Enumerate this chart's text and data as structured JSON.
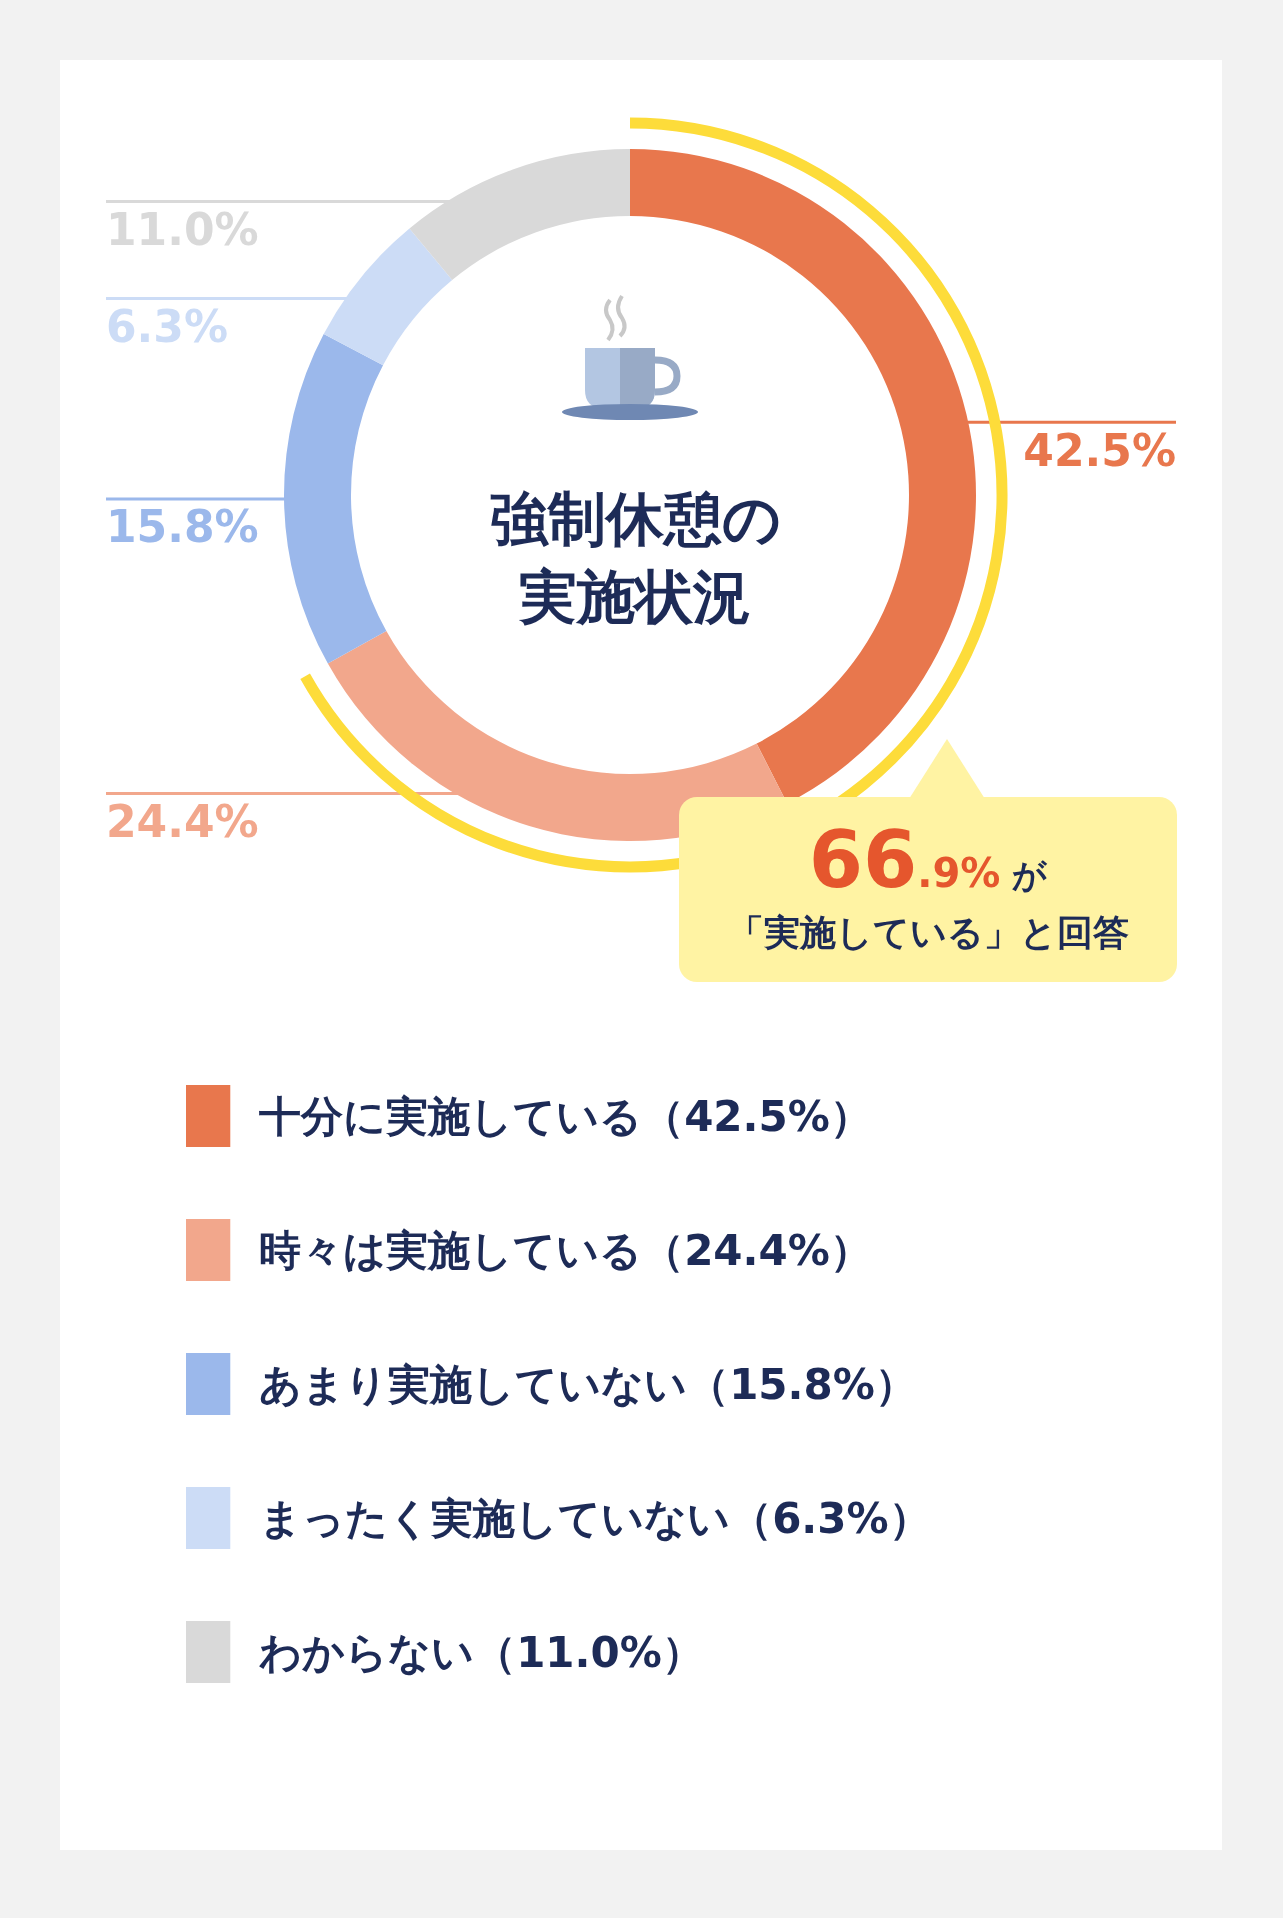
{
  "chart_data": {
    "type": "donut",
    "title": "強制休憩の実施状況",
    "categories": [
      "十分に実施している（42.5%）",
      "時々は実施している（24.4%）",
      "あまり実施していない（15.8%）",
      "まったく実施していない（6.3%）",
      "わからない（11.0%）"
    ],
    "values": [
      42.5,
      24.4,
      15.8,
      6.3,
      11.0
    ],
    "colors": [
      "#e8774d",
      "#f2a78c",
      "#9bb8eb",
      "#ccdcf6",
      "#d9d9d9"
    ],
    "value_labels": [
      "42.5%",
      "24.4%",
      "15.8%",
      "6.3%",
      "11.0%"
    ],
    "legend": "bottom",
    "annotations": [
      "66.9% が",
      "「実施している」と回答"
    ]
  }
}
